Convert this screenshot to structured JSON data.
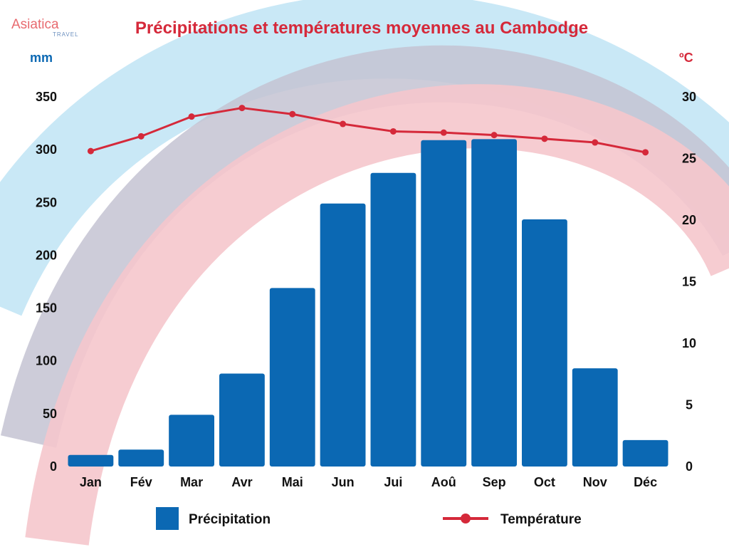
{
  "logo": {
    "brand": "Asiatica",
    "sub": "TRAVEL"
  },
  "colors": {
    "bar": "#0b68b3",
    "line": "#d5293a",
    "title": "#d5293a",
    "left_unit": "#0b68b3",
    "right_unit": "#d5293a",
    "arc_blue": "#c9e8f6",
    "arc_pink": "#f5c6cc",
    "arc_overlap": "#c4c3d2"
  },
  "chart_data": {
    "type": "bar",
    "title": "Précipitations et températures moyennes au Cambodge",
    "categories": [
      "Jan",
      "Fév",
      "Mar",
      "Avr",
      "Mai",
      "Jun",
      "Jui",
      "Aoû",
      "Sep",
      "Oct",
      "Nov",
      "Déc"
    ],
    "series": [
      {
        "name": "Précipitation",
        "type": "bar",
        "axis": "left",
        "values": [
          11,
          16,
          49,
          88,
          169,
          249,
          278,
          309,
          310,
          234,
          93,
          25
        ]
      },
      {
        "name": "Température",
        "type": "line",
        "axis": "right",
        "values": [
          25.6,
          26.8,
          28.4,
          29.1,
          28.6,
          27.8,
          27.2,
          27.1,
          26.9,
          26.6,
          26.3,
          25.5
        ]
      }
    ],
    "y_left": {
      "unit": "mm",
      "ylim": [
        0,
        350
      ],
      "ticks": [
        "0",
        "50",
        "100",
        "150",
        "200",
        "250",
        "300",
        "350"
      ]
    },
    "y_right": {
      "unit": "ºC",
      "ylim": [
        0,
        30
      ],
      "ticks": [
        "0",
        "5",
        "10",
        "15",
        "20",
        "25",
        "30"
      ]
    },
    "legend": {
      "placement": "bottom",
      "bar_label": "Précipitation",
      "line_label": "Température"
    },
    "grid": false
  }
}
